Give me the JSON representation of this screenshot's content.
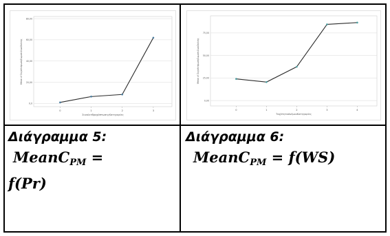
{
  "captions": {
    "left": "Διάγραμμα 5:",
    "right": "Διάγραμμα 6:"
  },
  "formulas": {
    "left": {
      "mean": "MeanC",
      "sub": "PM",
      "eq": " =",
      "line2": "f(Pr)"
    },
    "right": {
      "mean": "MeanC",
      "sub": "PM",
      "eq": " = ",
      "rhs": "f(WS)"
    }
  },
  "chart_data": [
    {
      "type": "line",
      "xlabel": "ΣυναλιτΒροχόπτωσηςΚατηγορίες",
      "ylabel": "Mean of ΣυγκέντρωσηΣωματιδίωνΣκόνης",
      "x": [
        0,
        1,
        2,
        3
      ],
      "y": [
        1.0,
        6.5,
        8.5,
        62.0
      ],
      "ylim": [
        -3,
        82
      ],
      "xlim": [
        -0.85,
        3.6
      ],
      "y_ticks": [
        0,
        20,
        40,
        60,
        80
      ],
      "y_tick_labels": [
        "0,0",
        "20,00",
        "40,00",
        "60,00",
        "80,00"
      ],
      "x_tick_labels": [
        "0",
        "1",
        "2",
        "3"
      ],
      "grid": true,
      "line_color": "#2b2b2b",
      "marker_color": "#4a7c9e"
    },
    {
      "type": "line",
      "xlabel": "ΤαχύτηταΑνέμουΚατηγορίες",
      "ylabel": "Mean of ΣυγκέντρωσηΣωματιδίωνΣκόνης",
      "x": [
        0,
        1,
        2,
        3,
        4
      ],
      "y": [
        24.0,
        20.5,
        37.5,
        84.5,
        86.5
      ],
      "ylim": [
        -6,
        94
      ],
      "xlim": [
        -0.85,
        4.65
      ],
      "y_ticks": [
        0,
        25,
        50,
        75
      ],
      "y_tick_labels": [
        "0,00",
        "25,00",
        "50,00",
        "75,00"
      ],
      "x_tick_labels": [
        "0",
        "1",
        "2",
        "3",
        "4"
      ],
      "grid": true,
      "line_color": "#2b2b2b",
      "marker_color": "#4a9ea0"
    }
  ]
}
